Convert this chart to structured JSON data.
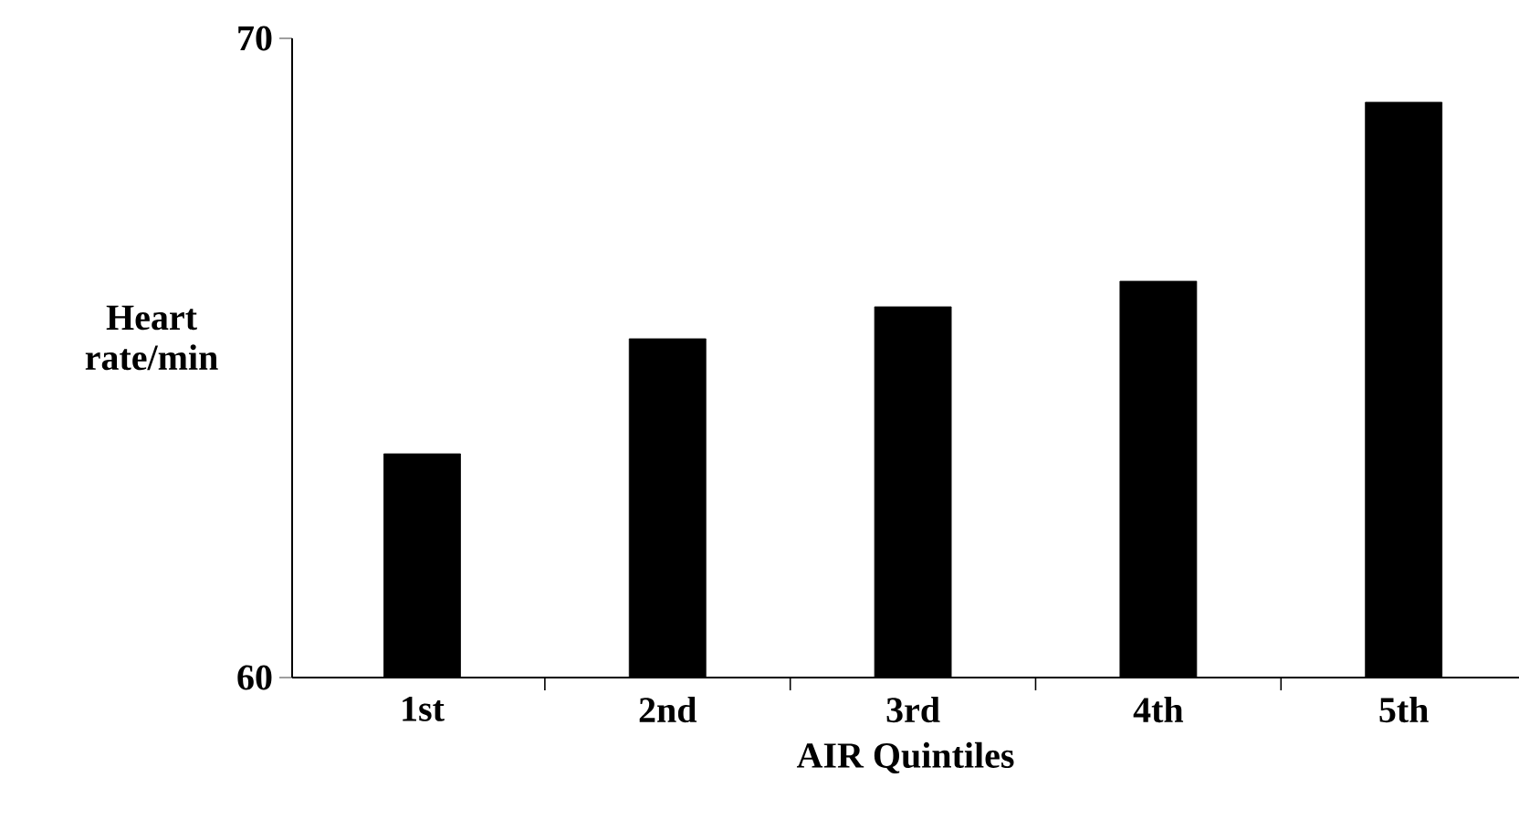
{
  "chart_data": {
    "type": "bar",
    "xlabel": "AIR Quintiles",
    "ylabel": "Heart rate/min",
    "categories": [
      "1st",
      "2nd",
      "3rd",
      "4th",
      "5th"
    ],
    "values": [
      63.5,
      65.3,
      65.8,
      66.2,
      69.0
    ],
    "color": "#000000",
    "ylim": [
      60,
      70
    ],
    "yticks": [
      60,
      70
    ]
  }
}
